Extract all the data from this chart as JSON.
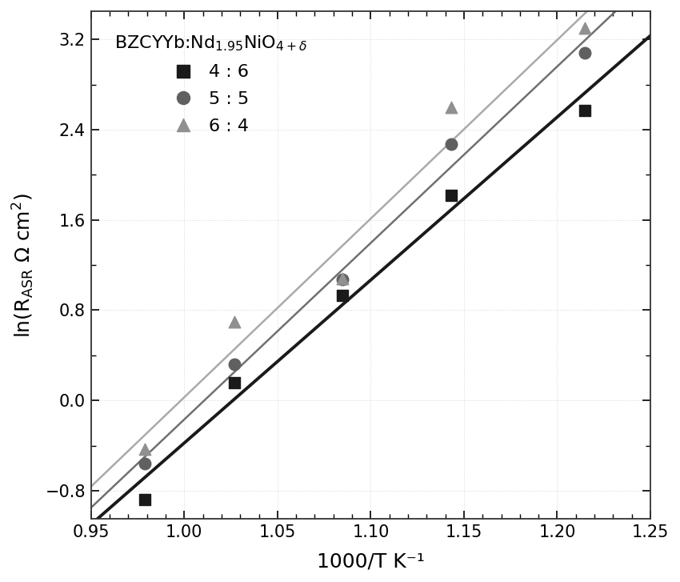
{
  "xlabel": "1000/T K⁻¹",
  "xlim": [
    0.95,
    1.25
  ],
  "ylim": [
    -1.05,
    3.45
  ],
  "xticks": [
    0.95,
    1.0,
    1.05,
    1.1,
    1.15,
    1.2,
    1.25
  ],
  "yticks": [
    -0.8,
    0.0,
    0.8,
    1.6,
    2.4,
    3.2
  ],
  "background_color": "#ffffff",
  "grid_color": "#d0d0d0",
  "series": [
    {
      "label": "4 : 6",
      "color_marker": "#1a1a1a",
      "color_line": "#1a1a1a",
      "marker": "s",
      "x_data": [
        0.979,
        1.027,
        1.085,
        1.143,
        1.215
      ],
      "y_data": [
        -0.88,
        0.16,
        0.93,
        1.82,
        2.57
      ],
      "line_width": 2.8
    },
    {
      "label": "5 : 5",
      "color_marker": "#606060",
      "color_line": "#707070",
      "marker": "o",
      "x_data": [
        0.979,
        1.027,
        1.085,
        1.143,
        1.215
      ],
      "y_data": [
        -0.56,
        0.32,
        1.07,
        2.27,
        3.08
      ],
      "line_width": 1.8
    },
    {
      "label": "6 : 4",
      "color_marker": "#909090",
      "color_line": "#aaaaaa",
      "marker": "^",
      "x_data": [
        0.979,
        1.027,
        1.085,
        1.143,
        1.215
      ],
      "y_data": [
        -0.43,
        0.7,
        1.08,
        2.6,
        3.3
      ],
      "line_width": 1.8
    }
  ]
}
